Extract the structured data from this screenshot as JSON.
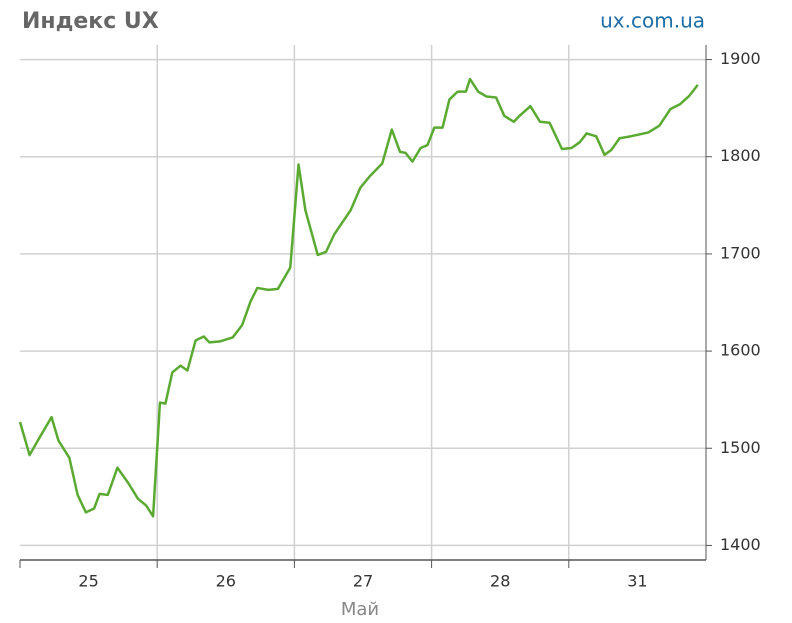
{
  "chart_data": {
    "type": "line",
    "title": "Индекс UX",
    "source": "ux.com.ua",
    "x_label": "Май",
    "categories": [
      "25",
      "26",
      "27",
      "28",
      "31"
    ],
    "xlim": [
      0,
      5
    ],
    "xticks": [
      1,
      2,
      3,
      4
    ],
    "ylim": [
      1385,
      1915
    ],
    "yticks": [
      1400,
      1500,
      1600,
      1700,
      1800,
      1900
    ],
    "grid": true,
    "series": [
      {
        "name": "Индекс UX",
        "color": "#5aaa32",
        "x": [
          0,
          0.07,
          0.13,
          0.23,
          0.28,
          0.36,
          0.42,
          0.48,
          0.54,
          0.58,
          0.64,
          0.71,
          0.79,
          0.86,
          0.92,
          0.97,
          1.02,
          1.06,
          1.11,
          1.17,
          1.22,
          1.28,
          1.34,
          1.38,
          1.46,
          1.55,
          1.62,
          1.68,
          1.73,
          1.81,
          1.88,
          1.97,
          2.03,
          2.08,
          2.17,
          2.23,
          2.29,
          2.41,
          2.48,
          2.55,
          2.64,
          2.71,
          2.77,
          2.81,
          2.86,
          2.92,
          2.97,
          3.02,
          3.08,
          3.13,
          3.19,
          3.25,
          3.28,
          3.34,
          3.4,
          3.47,
          3.53,
          3.6,
          3.64,
          3.72,
          3.79,
          3.86,
          3.95,
          4.02,
          4.08,
          4.13,
          4.2,
          4.26,
          4.31,
          4.37,
          4.45,
          4.58,
          4.66,
          4.74,
          4.81,
          4.88,
          4.94
        ],
        "values": [
          1527,
          1493,
          1508,
          1532,
          1508,
          1490,
          1452,
          1434,
          1438,
          1453,
          1452,
          1480,
          1464,
          1448,
          1441,
          1430,
          1547,
          1546,
          1578,
          1585,
          1580,
          1611,
          1615,
          1609,
          1610,
          1614,
          1627,
          1651,
          1665,
          1663,
          1664,
          1686,
          1792,
          1745,
          1699,
          1702,
          1720,
          1745,
          1768,
          1780,
          1793,
          1828,
          1805,
          1804,
          1795,
          1809,
          1812,
          1830,
          1830,
          1859,
          1867,
          1867,
          1880,
          1867,
          1862,
          1861,
          1842,
          1836,
          1842,
          1852,
          1836,
          1835,
          1808,
          1809,
          1815,
          1824,
          1821,
          1802,
          1807,
          1819,
          1821,
          1825,
          1832,
          1849,
          1854,
          1863,
          1874
        ]
      }
    ]
  }
}
